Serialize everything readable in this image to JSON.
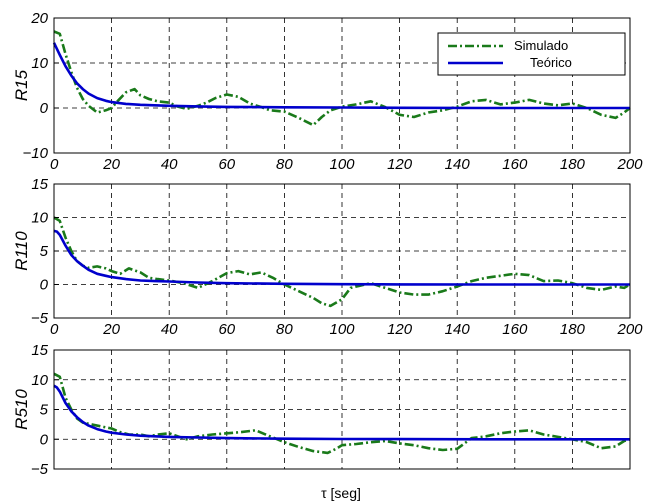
{
  "chart_data": [
    {
      "type": "line",
      "ylabel": "R15",
      "xlim": [
        0,
        200
      ],
      "ylim": [
        -10,
        20
      ],
      "xticks": [
        "0",
        "20",
        "40",
        "60",
        "80",
        "100",
        "120",
        "140",
        "160",
        "180",
        "200"
      ],
      "yticks": [
        "−10",
        "0",
        "10",
        "20"
      ],
      "ytick_values": [
        -10,
        0,
        10,
        20
      ],
      "grid": true,
      "legend_placement": "top-right",
      "series": [
        {
          "name": "Simulado",
          "color": "#1a7a1a",
          "style": "dashdot",
          "x": [
            0,
            2,
            4,
            6,
            8,
            10,
            12,
            15,
            18,
            20,
            22,
            25,
            28,
            30,
            33,
            36,
            40,
            43,
            46,
            50,
            53,
            56,
            60,
            64,
            68,
            72,
            75,
            80,
            85,
            90,
            93,
            96,
            100,
            105,
            110,
            115,
            120,
            125,
            130,
            135,
            140,
            145,
            150,
            155,
            160,
            165,
            170,
            175,
            180,
            185,
            190,
            195,
            198,
            200
          ],
          "y": [
            17,
            16.5,
            12,
            8,
            4.5,
            2,
            0.5,
            -1,
            -0.5,
            0,
            1.5,
            3.5,
            4.2,
            2.8,
            2,
            1.5,
            1.2,
            0.3,
            -0.2,
            0.5,
            1.2,
            2.2,
            3,
            2.5,
            1,
            0.2,
            -0.5,
            -0.8,
            -2.2,
            -3.8,
            -2,
            -0.5,
            0.3,
            0.8,
            1.5,
            0.2,
            -1.5,
            -2,
            -1,
            -0.5,
            0.3,
            1.5,
            1.8,
            0.8,
            1.2,
            1.8,
            1,
            0.6,
            1,
            0,
            -1.5,
            -2.2,
            -1,
            0
          ]
        },
        {
          "name": "Teórico",
          "color": "#0000cc",
          "style": "solid",
          "x": [
            0,
            2,
            4,
            6,
            8,
            10,
            12,
            15,
            18,
            20,
            25,
            30,
            35,
            40,
            50,
            60,
            80,
            100,
            120,
            150,
            200
          ],
          "y": [
            14.5,
            11.8,
            9.3,
            7.2,
            5.5,
            4.2,
            3.2,
            2.2,
            1.6,
            1.3,
            0.9,
            0.7,
            0.6,
            0.5,
            0.35,
            0.25,
            0.15,
            0.1,
            0.05,
            0,
            0
          ]
        }
      ]
    },
    {
      "type": "line",
      "ylabel": "R110",
      "xlim": [
        0,
        200
      ],
      "ylim": [
        -5,
        15
      ],
      "xticks": [
        "0",
        "20",
        "40",
        "60",
        "80",
        "100",
        "120",
        "140",
        "160",
        "180",
        "200"
      ],
      "yticks": [
        "−5",
        "0",
        "5",
        "10",
        "15"
      ],
      "ytick_values": [
        -5,
        0,
        5,
        10,
        15
      ],
      "grid": true,
      "series": [
        {
          "name": "Simulado",
          "color": "#1a7a1a",
          "style": "dashdot",
          "x": [
            0,
            2,
            4,
            6,
            8,
            10,
            12,
            15,
            18,
            20,
            23,
            26,
            30,
            33,
            36,
            40,
            45,
            50,
            55,
            60,
            64,
            68,
            72,
            76,
            80,
            85,
            90,
            93,
            96,
            100,
            103,
            106,
            110,
            115,
            120,
            125,
            130,
            135,
            140,
            145,
            150,
            155,
            160,
            165,
            170,
            175,
            180,
            185,
            190,
            195,
            198,
            200
          ],
          "y": [
            10,
            9.5,
            7,
            5,
            3.5,
            2.8,
            2.5,
            2.7,
            2.4,
            2,
            1.6,
            2.4,
            1.8,
            1,
            0.8,
            0.6,
            0.2,
            -0.5,
            0.5,
            1.7,
            2,
            1.5,
            1.8,
            1,
            0,
            -1,
            -2,
            -2.8,
            -3.2,
            -2.2,
            -0.5,
            -0.2,
            0.2,
            -0.5,
            -1.2,
            -1.5,
            -1.5,
            -1,
            -0.3,
            0.5,
            1,
            1.3,
            1.6,
            1.4,
            0.5,
            0.6,
            0.2,
            -0.5,
            -0.8,
            -0.3,
            -0.5,
            0
          ]
        },
        {
          "name": "Teórico",
          "color": "#0000cc",
          "style": "solid",
          "x": [
            0,
            1,
            2,
            4,
            6,
            8,
            10,
            12,
            15,
            18,
            20,
            25,
            30,
            35,
            40,
            50,
            60,
            80,
            100,
            120,
            150,
            200
          ],
          "y": [
            8,
            7.9,
            7.4,
            5.8,
            4.4,
            3.5,
            2.8,
            2.2,
            1.6,
            1.3,
            1.1,
            0.8,
            0.6,
            0.5,
            0.45,
            0.3,
            0.2,
            0.1,
            0.05,
            0.02,
            0,
            0
          ]
        }
      ]
    },
    {
      "type": "line",
      "ylabel": "R510",
      "xlabel": "τ [seg]",
      "xlim": [
        0,
        200
      ],
      "ylim": [
        -5,
        15
      ],
      "yticks": [
        "−5",
        "0",
        "5",
        "10",
        "15"
      ],
      "ytick_values": [
        -5,
        0,
        5,
        10,
        15
      ],
      "grid": true,
      "series": [
        {
          "name": "Simulado",
          "color": "#1a7a1a",
          "style": "dashdot",
          "x": [
            0,
            2,
            4,
            6,
            8,
            10,
            13,
            16,
            20,
            23,
            26,
            30,
            33,
            36,
            40,
            43,
            46,
            50,
            55,
            60,
            65,
            70,
            75,
            80,
            85,
            90,
            95,
            98,
            100,
            105,
            110,
            115,
            120,
            125,
            130,
            135,
            140,
            145,
            150,
            155,
            160,
            165,
            170,
            175,
            180,
            185,
            190,
            195,
            198,
            200
          ],
          "y": [
            11,
            10.5,
            7,
            5,
            3.5,
            2.8,
            2.5,
            2.2,
            1.8,
            1.2,
            0.8,
            0.8,
            0.5,
            0.8,
            1,
            0.5,
            0,
            0.5,
            0.8,
            1,
            1.2,
            1.5,
            0.5,
            -0.5,
            -1.3,
            -2,
            -2.3,
            -1.6,
            -1,
            -0.8,
            -0.5,
            -0.3,
            -0.7,
            -1,
            -1.5,
            -1.8,
            -1.6,
            0.2,
            0.5,
            1,
            1.3,
            1.5,
            0.8,
            0.4,
            0,
            -0.5,
            -1.5,
            -1.2,
            -0.3,
            0
          ]
        },
        {
          "name": "Teórico",
          "color": "#0000cc",
          "style": "solid",
          "x": [
            0,
            1,
            2,
            4,
            6,
            8,
            10,
            12,
            15,
            18,
            20,
            25,
            30,
            35,
            40,
            50,
            60,
            80,
            100,
            120,
            150,
            200
          ],
          "y": [
            9,
            8.7,
            8,
            6.1,
            4.7,
            3.7,
            2.9,
            2.3,
            1.7,
            1.3,
            1.1,
            0.8,
            0.6,
            0.5,
            0.4,
            0.3,
            0.2,
            0.1,
            0.05,
            0.02,
            0,
            0
          ]
        }
      ]
    }
  ]
}
